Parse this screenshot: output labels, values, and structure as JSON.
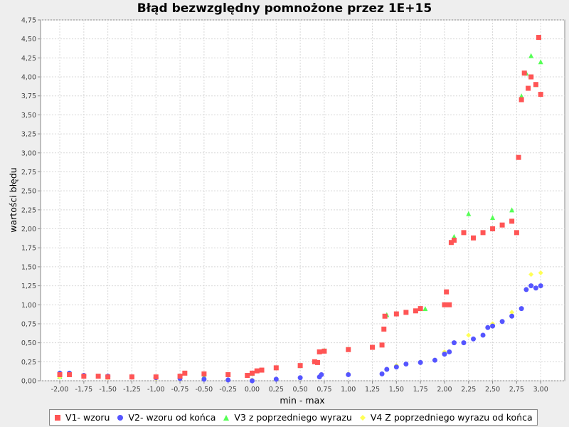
{
  "chart_data": {
    "type": "scatter",
    "title": "Błąd bezwzględny  pomnożone przez 1E+15",
    "xlabel": "min - max",
    "ylabel": "wartości błędu",
    "xlim": [
      -2.2,
      3.25
    ],
    "ylim": [
      0,
      4.75
    ],
    "x_ticks": [
      "-2,00",
      "-1,75",
      "-1,50",
      "-1,25",
      "-1,00",
      "-0,75",
      "-0,50",
      "-0,25",
      "0,00",
      "0,25",
      "0,50",
      "0,75",
      "1,00",
      "1,25",
      "1,50",
      "1,75",
      "2,00",
      "2,25",
      "2,50",
      "2,75",
      "3,00"
    ],
    "y_ticks": [
      "0,00",
      "0,25",
      "0,50",
      "0,75",
      "1,00",
      "1,25",
      "1,50",
      "1,75",
      "2,00",
      "2,25",
      "2,50",
      "2,75",
      "3,00",
      "3,25",
      "3,50",
      "3,75",
      "4,00",
      "4,25",
      "4,50",
      "4,75"
    ],
    "grid": true,
    "legend_position": "bottom",
    "series": [
      {
        "name": "V1- wzoru",
        "color": "#ff5555",
        "marker": "square",
        "points": [
          [
            -2.0,
            0.08
          ],
          [
            -1.9,
            0.08
          ],
          [
            -1.75,
            0.06
          ],
          [
            -1.6,
            0.06
          ],
          [
            -1.5,
            0.05
          ],
          [
            -1.25,
            0.05
          ],
          [
            -1.0,
            0.05
          ],
          [
            -0.75,
            0.06
          ],
          [
            -0.7,
            0.1
          ],
          [
            -0.5,
            0.09
          ],
          [
            -0.25,
            0.08
          ],
          [
            -0.05,
            0.07
          ],
          [
            0.0,
            0.1
          ],
          [
            0.05,
            0.13
          ],
          [
            0.1,
            0.14
          ],
          [
            0.25,
            0.17
          ],
          [
            0.5,
            0.2
          ],
          [
            0.65,
            0.25
          ],
          [
            0.68,
            0.24
          ],
          [
            0.7,
            0.38
          ],
          [
            0.75,
            0.39
          ],
          [
            1.0,
            0.41
          ],
          [
            1.25,
            0.44
          ],
          [
            1.35,
            0.47
          ],
          [
            1.37,
            0.68
          ],
          [
            1.38,
            0.85
          ],
          [
            1.5,
            0.88
          ],
          [
            1.6,
            0.9
          ],
          [
            1.7,
            0.92
          ],
          [
            1.75,
            0.95
          ],
          [
            2.0,
            1.0
          ],
          [
            2.02,
            1.17
          ],
          [
            2.05,
            1.0
          ],
          [
            2.07,
            1.82
          ],
          [
            2.1,
            1.85
          ],
          [
            2.2,
            1.95
          ],
          [
            2.3,
            1.88
          ],
          [
            2.4,
            1.95
          ],
          [
            2.5,
            2.0
          ],
          [
            2.6,
            2.05
          ],
          [
            2.7,
            2.1
          ],
          [
            2.75,
            1.95
          ],
          [
            2.77,
            2.94
          ],
          [
            2.8,
            3.7
          ],
          [
            2.83,
            4.05
          ],
          [
            2.87,
            3.85
          ],
          [
            2.9,
            4.0
          ],
          [
            2.95,
            3.9
          ],
          [
            2.98,
            4.52
          ],
          [
            3.0,
            3.77
          ]
        ]
      },
      {
        "name": "V2- wzoru od końca",
        "color": "#5555ff",
        "marker": "circle",
        "points": [
          [
            -2.0,
            0.1
          ],
          [
            -1.9,
            0.1
          ],
          [
            -1.75,
            0.07
          ],
          [
            -1.5,
            0.06
          ],
          [
            -1.25,
            0.05
          ],
          [
            -1.0,
            0.04
          ],
          [
            -0.75,
            0.03
          ],
          [
            -0.5,
            0.02
          ],
          [
            -0.25,
            0.01
          ],
          [
            0.0,
            0.0
          ],
          [
            0.25,
            0.02
          ],
          [
            0.5,
            0.04
          ],
          [
            0.7,
            0.05
          ],
          [
            0.72,
            0.08
          ],
          [
            1.0,
            0.08
          ],
          [
            1.35,
            0.09
          ],
          [
            1.4,
            0.15
          ],
          [
            1.5,
            0.18
          ],
          [
            1.6,
            0.22
          ],
          [
            1.75,
            0.24
          ],
          [
            1.9,
            0.27
          ],
          [
            2.0,
            0.35
          ],
          [
            2.05,
            0.38
          ],
          [
            2.1,
            0.5
          ],
          [
            2.2,
            0.5
          ],
          [
            2.3,
            0.55
          ],
          [
            2.4,
            0.6
          ],
          [
            2.45,
            0.7
          ],
          [
            2.5,
            0.72
          ],
          [
            2.6,
            0.78
          ],
          [
            2.7,
            0.85
          ],
          [
            2.8,
            0.95
          ],
          [
            2.85,
            1.2
          ],
          [
            2.9,
            1.25
          ],
          [
            2.95,
            1.22
          ],
          [
            3.0,
            1.25
          ]
        ]
      },
      {
        "name": "V3 z poprzedniego wyrazu",
        "color": "#55ff55",
        "marker": "triangle",
        "points": [
          [
            -2.0,
            0.06
          ],
          [
            -1.5,
            0.05
          ],
          [
            -1.0,
            0.05
          ],
          [
            -0.5,
            0.06
          ],
          [
            0.0,
            0.1
          ],
          [
            0.5,
            0.2
          ],
          [
            0.75,
            0.4
          ],
          [
            1.0,
            0.42
          ],
          [
            1.4,
            0.87
          ],
          [
            1.8,
            0.95
          ],
          [
            2.1,
            1.9
          ],
          [
            2.25,
            2.2
          ],
          [
            2.5,
            2.15
          ],
          [
            2.7,
            2.25
          ],
          [
            2.8,
            3.75
          ],
          [
            2.85,
            4.05
          ],
          [
            2.9,
            4.28
          ],
          [
            2.95,
            3.9
          ],
          [
            3.0,
            4.2
          ]
        ]
      },
      {
        "name": "V4 Z poprzedniego wyrazu od końca",
        "color": "#ffff55",
        "marker": "diamond",
        "points": [
          [
            -2.0,
            0.05
          ],
          [
            -1.5,
            0.04
          ],
          [
            -1.0,
            0.03
          ],
          [
            -0.5,
            0.02
          ],
          [
            0.0,
            0.01
          ],
          [
            0.5,
            0.04
          ],
          [
            1.0,
            0.09
          ],
          [
            1.5,
            0.2
          ],
          [
            2.0,
            0.38
          ],
          [
            2.25,
            0.6
          ],
          [
            2.5,
            0.75
          ],
          [
            2.7,
            0.9
          ],
          [
            2.85,
            1.2
          ],
          [
            2.9,
            1.4
          ],
          [
            3.0,
            1.42
          ]
        ]
      }
    ]
  }
}
